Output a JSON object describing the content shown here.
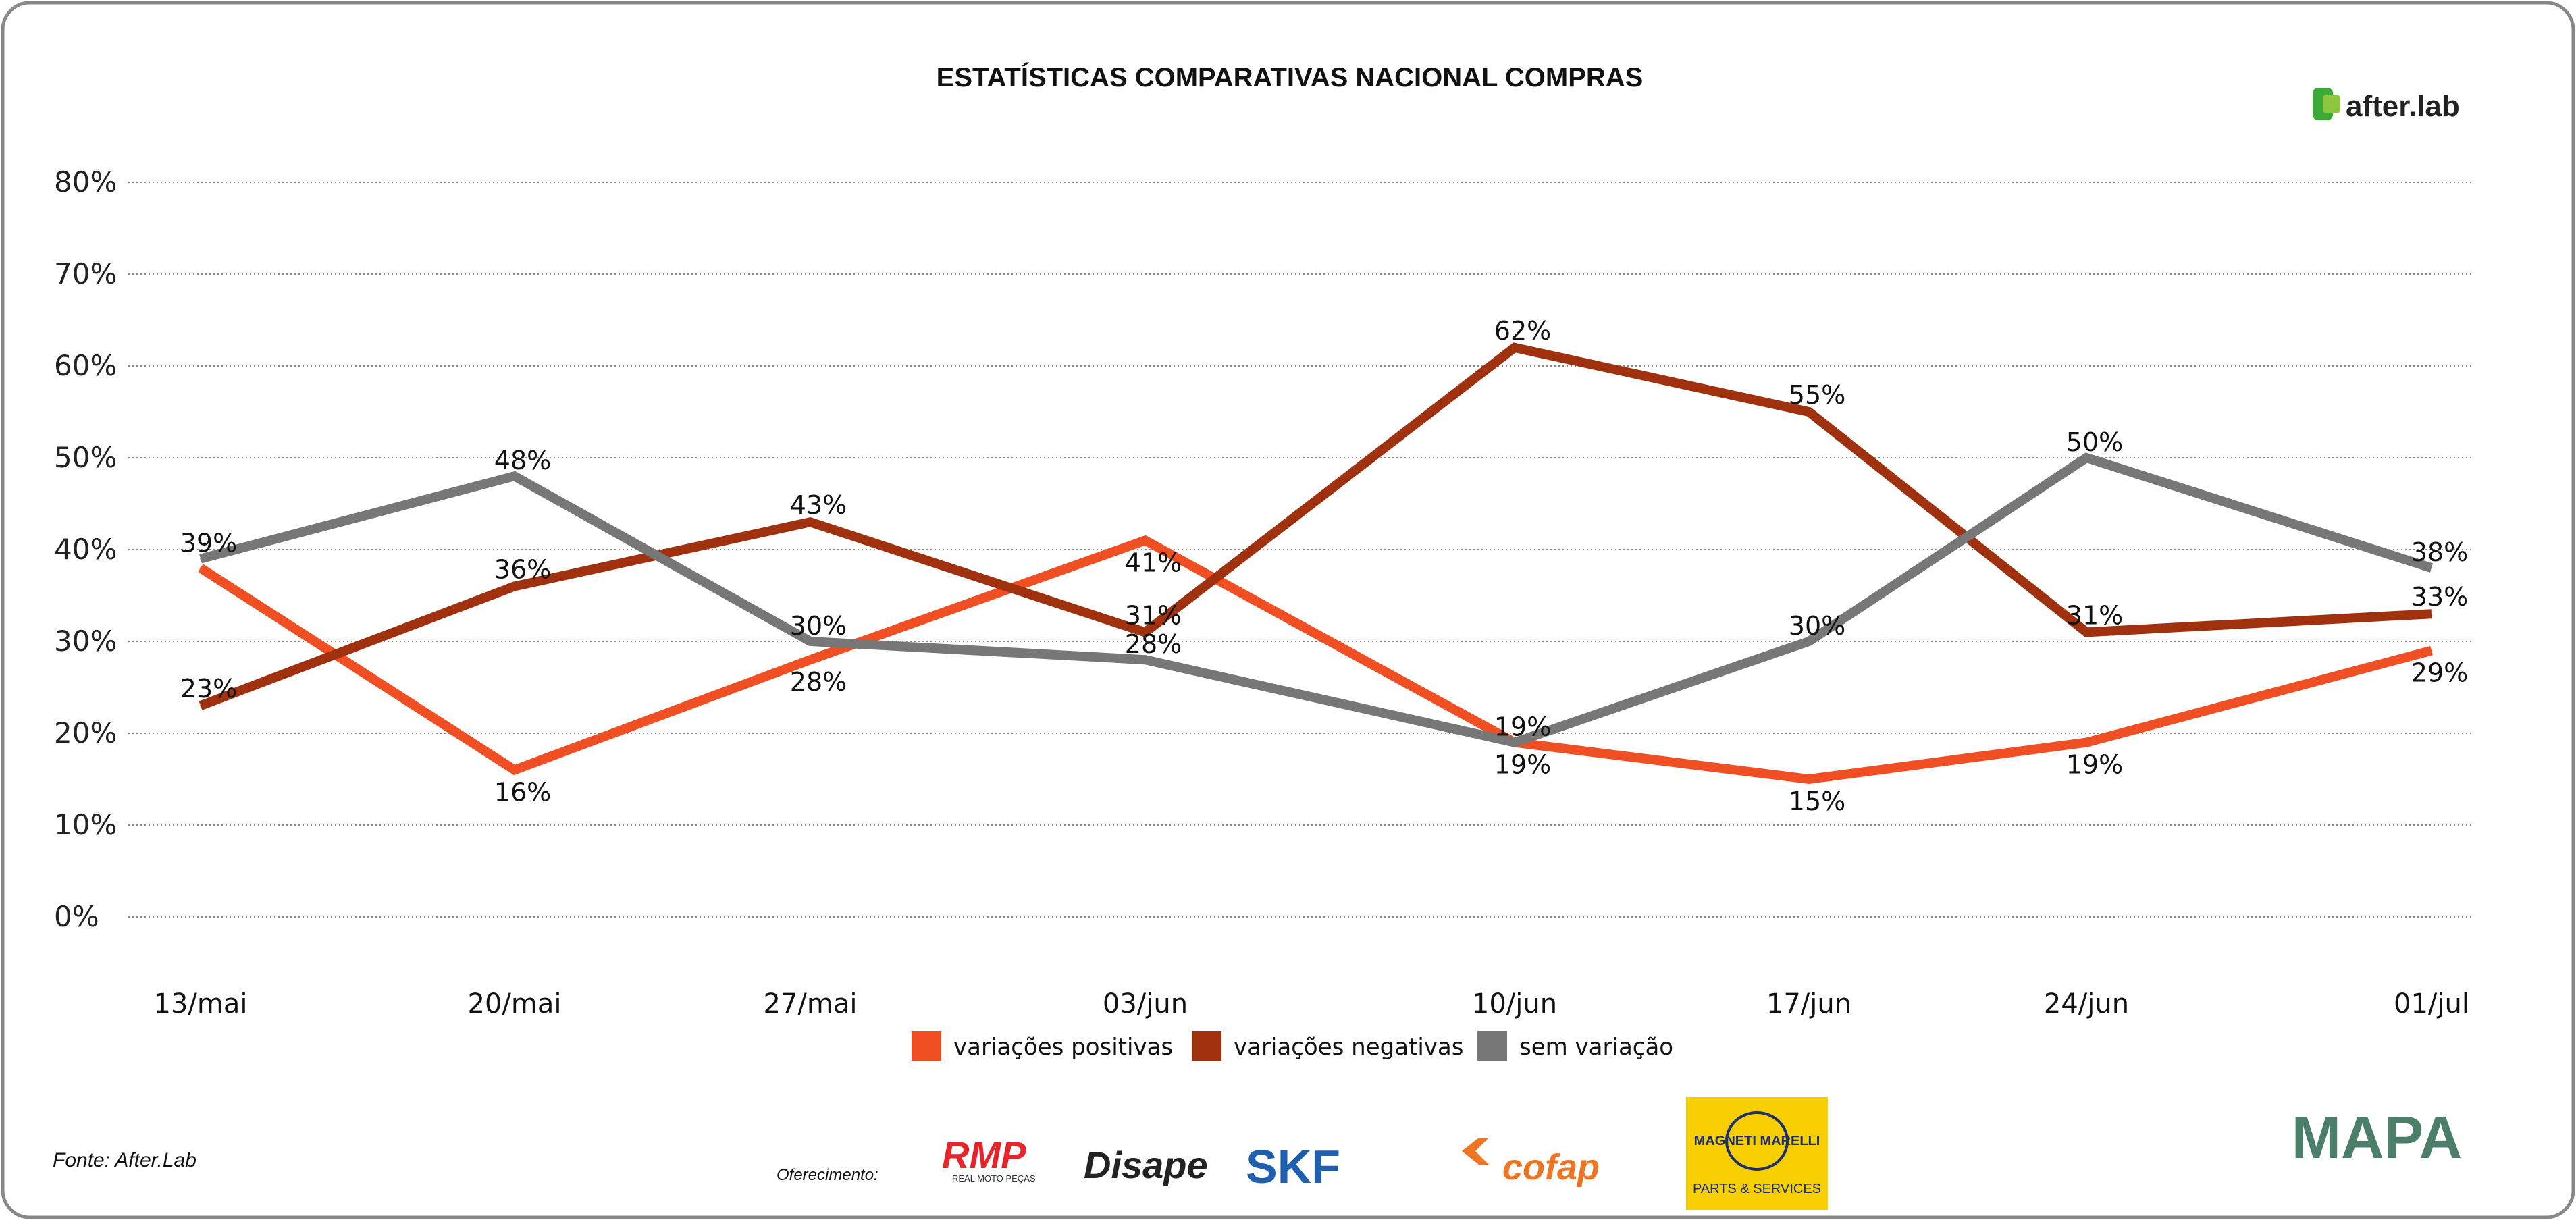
{
  "chart_data": {
    "type": "line",
    "title": "ESTATÍSTICAS COMPARATIVAS NACIONAL COMPRAS",
    "categories": [
      "13/mai",
      "20/mai",
      "27/mai",
      "03/jun",
      "10/jun",
      "17/jun",
      "24/jun",
      "01/jul"
    ],
    "yticks": [
      "0%",
      "10%",
      "20%",
      "30%",
      "40%",
      "50%",
      "60%",
      "70%",
      "80%"
    ],
    "ylim": [
      0,
      80
    ],
    "grid": true,
    "legend_position": "bottom",
    "series": [
      {
        "name": "variações positivas",
        "color": "#f04e23",
        "values": [
          38,
          16,
          28,
          41,
          19,
          15,
          19,
          29
        ],
        "labels": [
          "",
          "16%",
          "28%",
          "41%",
          "19%",
          "15%",
          "19%",
          "29%"
        ]
      },
      {
        "name": "variações negativas",
        "color": "#a0310f",
        "values": [
          23,
          36,
          43,
          31,
          62,
          55,
          31,
          33
        ],
        "labels": [
          "23%",
          "36%",
          "43%",
          "31%",
          "62%",
          "55%",
          "31%",
          "33%"
        ]
      },
      {
        "name": "sem variação",
        "color": "#777777",
        "values": [
          39,
          48,
          30,
          28,
          19,
          30,
          50,
          38
        ],
        "labels": [
          "39%",
          "48%",
          "30%",
          "28%",
          "19%",
          "30%",
          "50%",
          "38%"
        ]
      }
    ]
  },
  "brand": "after.lab",
  "source": "Fonte: After.Lab",
  "sponsors_label": "Oferecimento:",
  "sponsors": [
    "RMP",
    "REAL MOTO PEÇAS",
    "Disape",
    "SKF",
    "cofap",
    "MAGNETI MARELLI",
    "PARTS & SERVICES"
  ],
  "partner": "MAPA"
}
